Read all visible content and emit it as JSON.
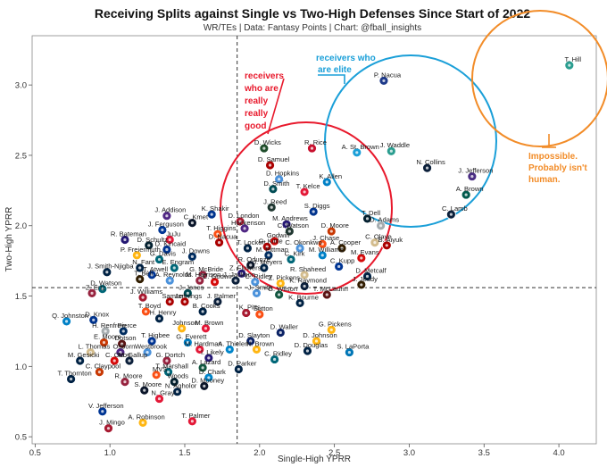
{
  "chart_data": {
    "type": "scatter",
    "title": "Receiving Splits against Single vs Two-High Defenses Since Start of 2022",
    "subtitle": "WR/TEs | Data: Fantasy Points | Chart: @fball_insights",
    "xlabel": "Single-High YPRR",
    "ylabel": "Two-High YPRR",
    "xlim": [
      0.48,
      4.25
    ],
    "ylim": [
      0.45,
      3.35
    ],
    "xticks": [
      0.5,
      1.0,
      1.5,
      2.0,
      2.5,
      3.0,
      3.5,
      4.0
    ],
    "yticks": [
      0.5,
      1.0,
      1.5,
      2.0,
      2.5,
      3.0
    ],
    "xtick_labels": [
      "0.5",
      "1.0",
      "1.5",
      "2.0",
      "2.5",
      "3.0",
      "3.5",
      "4.0"
    ],
    "ytick_labels": [
      "0.5",
      "1.0",
      "1.5",
      "2.0",
      "2.5",
      "3.0"
    ],
    "reference_lines": {
      "x": 1.85,
      "y": 1.56,
      "style": "dashed"
    },
    "grid": false,
    "annotations": [
      {
        "text": "receivers who are really really good",
        "lines": [
          "receivers",
          "who are",
          "really",
          "really",
          "good"
        ],
        "color": "#e8192c"
      },
      {
        "text": "receivers who are elite",
        "lines": [
          "receivers who",
          "are elite"
        ],
        "color": "#1a9fd8"
      },
      {
        "text": "Impossible. Probably isn't human.",
        "lines": [
          "Impossible.",
          "Probably isn't",
          "human."
        ],
        "color": "#f28c28"
      }
    ],
    "points": [
      {
        "name": "T. Hill",
        "x": 4.07,
        "y": 3.14,
        "color": "#2a9d8f"
      },
      {
        "name": "P. Nacua",
        "x": 2.83,
        "y": 3.03,
        "color": "#1e3a8a"
      },
      {
        "name": "J. Waddle",
        "x": 2.88,
        "y": 2.53,
        "color": "#2a9d8f"
      },
      {
        "name": "A. St. Brown",
        "x": 2.65,
        "y": 2.52,
        "color": "#1a9fd8"
      },
      {
        "name": "N. Collins",
        "x": 3.12,
        "y": 2.41,
        "color": "#0b1f3a"
      },
      {
        "name": "J. Jefferson",
        "x": 3.42,
        "y": 2.35,
        "color": "#4b2e83"
      },
      {
        "name": "A. Brown",
        "x": 3.38,
        "y": 2.22,
        "color": "#00594c"
      },
      {
        "name": "C. Lamb",
        "x": 3.28,
        "y": 2.08,
        "color": "#0b1f3a"
      },
      {
        "name": "D. Wicks",
        "x": 2.03,
        "y": 2.55,
        "color": "#1f4d2b"
      },
      {
        "name": "R. Rice",
        "x": 2.35,
        "y": 2.55,
        "color": "#c8102e"
      },
      {
        "name": "D. Samuel",
        "x": 2.07,
        "y": 2.43,
        "color": "#aa0000"
      },
      {
        "name": "D. Hopkins",
        "x": 2.13,
        "y": 2.33,
        "color": "#4b92db"
      },
      {
        "name": "D. Smith",
        "x": 2.09,
        "y": 2.26,
        "color": "#004c54"
      },
      {
        "name": "T. Kelce",
        "x": 2.3,
        "y": 2.24,
        "color": "#e31837"
      },
      {
        "name": "K. Allen",
        "x": 2.45,
        "y": 2.31,
        "color": "#0080c6"
      },
      {
        "name": "J. Reed",
        "x": 2.08,
        "y": 2.13,
        "color": "#203731"
      },
      {
        "name": "S. Diggs",
        "x": 2.36,
        "y": 2.1,
        "color": "#00338d"
      },
      {
        "name": "T. Dell",
        "x": 2.72,
        "y": 2.05,
        "color": "#03202f"
      },
      {
        "name": "D. Adams",
        "x": 2.81,
        "y": 2.0,
        "color": "#a5acaf"
      },
      {
        "name": "K. Shakir",
        "x": 1.68,
        "y": 2.08,
        "color": "#00338d"
      },
      {
        "name": "J. Addison",
        "x": 1.38,
        "y": 2.07,
        "color": "#4f2683"
      },
      {
        "name": "C. Kmet",
        "x": 1.55,
        "y": 2.02,
        "color": "#0b162a"
      },
      {
        "name": "D. London",
        "x": 1.87,
        "y": 2.03,
        "color": "#a71930"
      },
      {
        "name": "M. Andrews",
        "x": 2.18,
        "y": 2.01,
        "color": "#241773"
      },
      {
        "name": "Hockenson",
        "x": 1.9,
        "y": 1.98,
        "color": "#4f2683"
      },
      {
        "name": "C. Watson",
        "x": 2.2,
        "y": 1.96,
        "color": "#203731"
      },
      {
        "name": "D. Moore",
        "x": 2.48,
        "y": 1.96,
        "color": "#c83803"
      },
      {
        "name": "J. Ferguson",
        "x": 1.35,
        "y": 1.97,
        "color": "#003594"
      },
      {
        "name": "T. Higgins",
        "x": 1.72,
        "y": 1.94,
        "color": "#fb4f14"
      },
      {
        "name": "R. Bateman",
        "x": 1.1,
        "y": 1.9,
        "color": "#241773"
      },
      {
        "name": "JuJu",
        "x": 1.4,
        "y": 1.9,
        "color": "#e31837"
      },
      {
        "name": "D. Nacua",
        "x": 1.73,
        "y": 1.88,
        "color": "#aa0000"
      },
      {
        "name": "Godwin",
        "x": 2.1,
        "y": 1.89,
        "color": "#d50a0a"
      },
      {
        "name": "J. Chase",
        "x": 2.42,
        "y": 1.87,
        "color": "#fb4f14"
      },
      {
        "name": "C. Olave",
        "x": 2.77,
        "y": 1.88,
        "color": "#d3bc8d"
      },
      {
        "name": "D. Schultz",
        "x": 1.26,
        "y": 1.86,
        "color": "#03202f"
      },
      {
        "name": "D. Kincaid",
        "x": 1.38,
        "y": 1.83,
        "color": "#00338d"
      },
      {
        "name": "T. Lockett",
        "x": 1.92,
        "y": 1.84,
        "color": "#002244"
      },
      {
        "name": "G. Kittle",
        "x": 2.05,
        "y": 1.85,
        "color": "#aa0000"
      },
      {
        "name": "C. Okonkwo",
        "x": 2.27,
        "y": 1.84,
        "color": "#4b92db"
      },
      {
        "name": "A. Cooper",
        "x": 2.55,
        "y": 1.84,
        "color": "#311d00"
      },
      {
        "name": "B. Aiyuk",
        "x": 2.85,
        "y": 1.86,
        "color": "#aa0000"
      },
      {
        "name": "P. Freiermuth",
        "x": 1.18,
        "y": 1.79,
        "color": "#ffb612"
      },
      {
        "name": "J. Downs",
        "x": 1.55,
        "y": 1.78,
        "color": "#002c5f"
      },
      {
        "name": "M. Pittman",
        "x": 2.06,
        "y": 1.79,
        "color": "#002c5f"
      },
      {
        "name": "M. Williams",
        "x": 2.42,
        "y": 1.79,
        "color": "#0080c6"
      },
      {
        "name": "M. Evans",
        "x": 2.68,
        "y": 1.77,
        "color": "#d50a0a"
      },
      {
        "name": "G. Davis",
        "x": 1.33,
        "y": 1.76,
        "color": "#006778"
      },
      {
        "name": "C. Kirk",
        "x": 2.21,
        "y": 1.76,
        "color": "#006778"
      },
      {
        "name": "C. Kupp",
        "x": 2.53,
        "y": 1.71,
        "color": "#003594"
      },
      {
        "name": "N. Fant",
        "x": 1.2,
        "y": 1.7,
        "color": "#002244"
      },
      {
        "name": "E. Engram",
        "x": 1.43,
        "y": 1.7,
        "color": "#006778"
      },
      {
        "name": "R. Odunze",
        "x": 1.94,
        "y": 1.72,
        "color": "#0b162a"
      },
      {
        "name": "J. Meyers",
        "x": 2.03,
        "y": 1.7,
        "color": "#002244"
      },
      {
        "name": "J. Smith-Njigba",
        "x": 0.98,
        "y": 1.67,
        "color": "#002244"
      },
      {
        "name": "T. Atwell",
        "x": 1.28,
        "y": 1.65,
        "color": "#003594"
      },
      {
        "name": "G. McBride",
        "x": 1.62,
        "y": 1.65,
        "color": "#97233f"
      },
      {
        "name": "Z. Flowers",
        "x": 1.88,
        "y": 1.66,
        "color": "#241773"
      },
      {
        "name": "R. Shaheed",
        "x": 2.3,
        "y": 1.65,
        "color": "#d3bc8d"
      },
      {
        "name": "D. Metcalf",
        "x": 2.72,
        "y": 1.64,
        "color": "#002244"
      },
      {
        "name": "T. Bell",
        "x": 1.2,
        "y": 1.62,
        "color": "#311d00"
      },
      {
        "name": "A. Reynolds",
        "x": 1.4,
        "y": 1.61,
        "color": "#4b92db"
      },
      {
        "name": "M. Harrison",
        "x": 1.6,
        "y": 1.61,
        "color": "#97233f"
      },
      {
        "name": "C. Godwin",
        "x": 1.7,
        "y": 1.6,
        "color": "#d50a0a"
      },
      {
        "name": "J. Jackson",
        "x": 1.84,
        "y": 1.61,
        "color": "#0b1f3a"
      },
      {
        "name": "C. Ridley",
        "x": 1.97,
        "y": 1.6,
        "color": "#4b92db"
      },
      {
        "name": "Z. Pickens",
        "x": 2.14,
        "y": 1.59,
        "color": "#ffb612"
      },
      {
        "name": "K. Raymond",
        "x": 2.3,
        "y": 1.57,
        "color": "#0b1f3a"
      },
      {
        "name": "J. Jeudy",
        "x": 2.68,
        "y": 1.58,
        "color": "#311d00"
      },
      {
        "name": "D. Watson",
        "x": 0.95,
        "y": 1.55,
        "color": "#006778"
      },
      {
        "name": "Z. Ertz",
        "x": 0.88,
        "y": 1.52,
        "color": "#97233f"
      },
      {
        "name": "J. Jones",
        "x": 1.52,
        "y": 1.52,
        "color": "#004c54"
      },
      {
        "name": "J. Smith",
        "x": 1.98,
        "y": 1.52,
        "color": "#4b92db"
      },
      {
        "name": "G. Wilson",
        "x": 2.13,
        "y": 1.51,
        "color": "#125740"
      },
      {
        "name": "T. McLaurin",
        "x": 2.45,
        "y": 1.51,
        "color": "#5a1414"
      },
      {
        "name": "J. Williams",
        "x": 1.22,
        "y": 1.49,
        "color": "#a71930"
      },
      {
        "name": "Samuel",
        "x": 1.4,
        "y": 1.46,
        "color": "#aa0000"
      },
      {
        "name": "Jennings",
        "x": 1.5,
        "y": 1.46,
        "color": "#aa0000"
      },
      {
        "name": "J. Palmer",
        "x": 1.72,
        "y": 1.46,
        "color": "#0b1f3a"
      },
      {
        "name": "K. Bourne",
        "x": 2.27,
        "y": 1.45,
        "color": "#002244"
      },
      {
        "name": "Q. Johnston",
        "x": 0.71,
        "y": 1.32,
        "color": "#0080c6"
      },
      {
        "name": "D. Knox",
        "x": 0.89,
        "y": 1.33,
        "color": "#00338d"
      },
      {
        "name": "T. Boyd",
        "x": 1.24,
        "y": 1.39,
        "color": "#fb4f14"
      },
      {
        "name": "H. Henry",
        "x": 1.33,
        "y": 1.34,
        "color": "#002244"
      },
      {
        "name": "B. Cooks",
        "x": 1.62,
        "y": 1.39,
        "color": "#002244"
      },
      {
        "name": "K. Pitts",
        "x": 1.91,
        "y": 1.38,
        "color": "#a71930"
      },
      {
        "name": "Sutton",
        "x": 2.0,
        "y": 1.37,
        "color": "#fb4f14"
      },
      {
        "name": "H. Renfrow",
        "x": 0.97,
        "y": 1.25,
        "color": "#a5acaf"
      },
      {
        "name": "Pierce",
        "x": 1.09,
        "y": 1.25,
        "color": "#002c5f"
      },
      {
        "name": "Johnson",
        "x": 1.48,
        "y": 1.27,
        "color": "#ffb612"
      },
      {
        "name": "M. Brown",
        "x": 1.64,
        "y": 1.27,
        "color": "#e31837"
      },
      {
        "name": "D. Waller",
        "x": 2.14,
        "y": 1.24,
        "color": "#0b2265"
      },
      {
        "name": "G. Pickens",
        "x": 2.48,
        "y": 1.26,
        "color": "#ffb612"
      },
      {
        "name": "E. Moore",
        "x": 0.96,
        "y": 1.17,
        "color": "#c83803"
      },
      {
        "name": "Dotson",
        "x": 1.08,
        "y": 1.16,
        "color": "#5a1414"
      },
      {
        "name": "T. Higbee",
        "x": 1.28,
        "y": 1.18,
        "color": "#003594"
      },
      {
        "name": "G. Everett",
        "x": 1.52,
        "y": 1.17,
        "color": "#0080c6"
      },
      {
        "name": "D. Slayton",
        "x": 1.94,
        "y": 1.18,
        "color": "#0b2265"
      },
      {
        "name": "D. Johnson",
        "x": 2.38,
        "y": 1.18,
        "color": "#ffb612"
      },
      {
        "name": "L. Thomas",
        "x": 0.87,
        "y": 1.1,
        "color": "#d3bc8d"
      },
      {
        "name": "Osborn",
        "x": 1.07,
        "y": 1.1,
        "color": "#4f2683"
      },
      {
        "name": "Westbrook",
        "x": 1.25,
        "y": 1.1,
        "color": "#4b92db"
      },
      {
        "name": "M. Hardman",
        "x": 1.6,
        "y": 1.12,
        "color": "#e31837"
      },
      {
        "name": "A. Thielen",
        "x": 1.8,
        "y": 1.12,
        "color": "#0085ca"
      },
      {
        "name": "N. Brown",
        "x": 1.98,
        "y": 1.12,
        "color": "#ffb612"
      },
      {
        "name": "D. Douglas",
        "x": 2.32,
        "y": 1.11,
        "color": "#002244"
      },
      {
        "name": "S. LaPorta",
        "x": 2.6,
        "y": 1.1,
        "color": "#0076b6"
      },
      {
        "name": "M. Gesicki",
        "x": 0.8,
        "y": 1.04,
        "color": "#002244"
      },
      {
        "name": "C. Otton",
        "x": 1.03,
        "y": 1.04,
        "color": "#d50a0a"
      },
      {
        "name": "M. Gallup",
        "x": 1.13,
        "y": 1.04,
        "color": "#0b1f3a"
      },
      {
        "name": "G. Dortch",
        "x": 1.38,
        "y": 1.04,
        "color": "#97233f"
      },
      {
        "name": "I. Likely",
        "x": 1.66,
        "y": 1.06,
        "color": "#241773"
      },
      {
        "name": "C. Ridley",
        "x": 2.1,
        "y": 1.05,
        "color": "#006778"
      },
      {
        "name": "C. Claypool",
        "x": 0.93,
        "y": 0.96,
        "color": "#c83803"
      },
      {
        "name": "T. Marshall",
        "x": 1.39,
        "y": 0.96,
        "color": "#006778"
      },
      {
        "name": "A. Lazard",
        "x": 1.62,
        "y": 0.99,
        "color": "#125740"
      },
      {
        "name": "D. Parker",
        "x": 1.86,
        "y": 0.98,
        "color": "#002244"
      },
      {
        "name": "T. Thornton",
        "x": 0.74,
        "y": 0.91,
        "color": "#002244"
      },
      {
        "name": "MVS",
        "x": 1.31,
        "y": 0.94,
        "color": "#fb4f14"
      },
      {
        "name": "D. Chark",
        "x": 1.66,
        "y": 0.92,
        "color": "#0085ca"
      },
      {
        "name": "R. Moore",
        "x": 1.1,
        "y": 0.89,
        "color": "#97233f"
      },
      {
        "name": "Woods",
        "x": 1.43,
        "y": 0.89,
        "color": "#03202f"
      },
      {
        "name": "D. Mooney",
        "x": 1.63,
        "y": 0.86,
        "color": "#0b162a"
      },
      {
        "name": "S. Moore",
        "x": 1.23,
        "y": 0.83,
        "color": "#0b162a"
      },
      {
        "name": "N. Agholor",
        "x": 1.45,
        "y": 0.82,
        "color": "#002244"
      },
      {
        "name": "N. Gray",
        "x": 1.33,
        "y": 0.77,
        "color": "#e31837"
      },
      {
        "name": "V. Jefferson",
        "x": 0.95,
        "y": 0.68,
        "color": "#003594"
      },
      {
        "name": "A. Robinson",
        "x": 1.22,
        "y": 0.6,
        "color": "#ffb612"
      },
      {
        "name": "T. Palmer",
        "x": 1.55,
        "y": 0.61,
        "color": "#e31837"
      },
      {
        "name": "J. Mingo",
        "x": 0.99,
        "y": 0.56,
        "color": "#a71930"
      }
    ]
  }
}
